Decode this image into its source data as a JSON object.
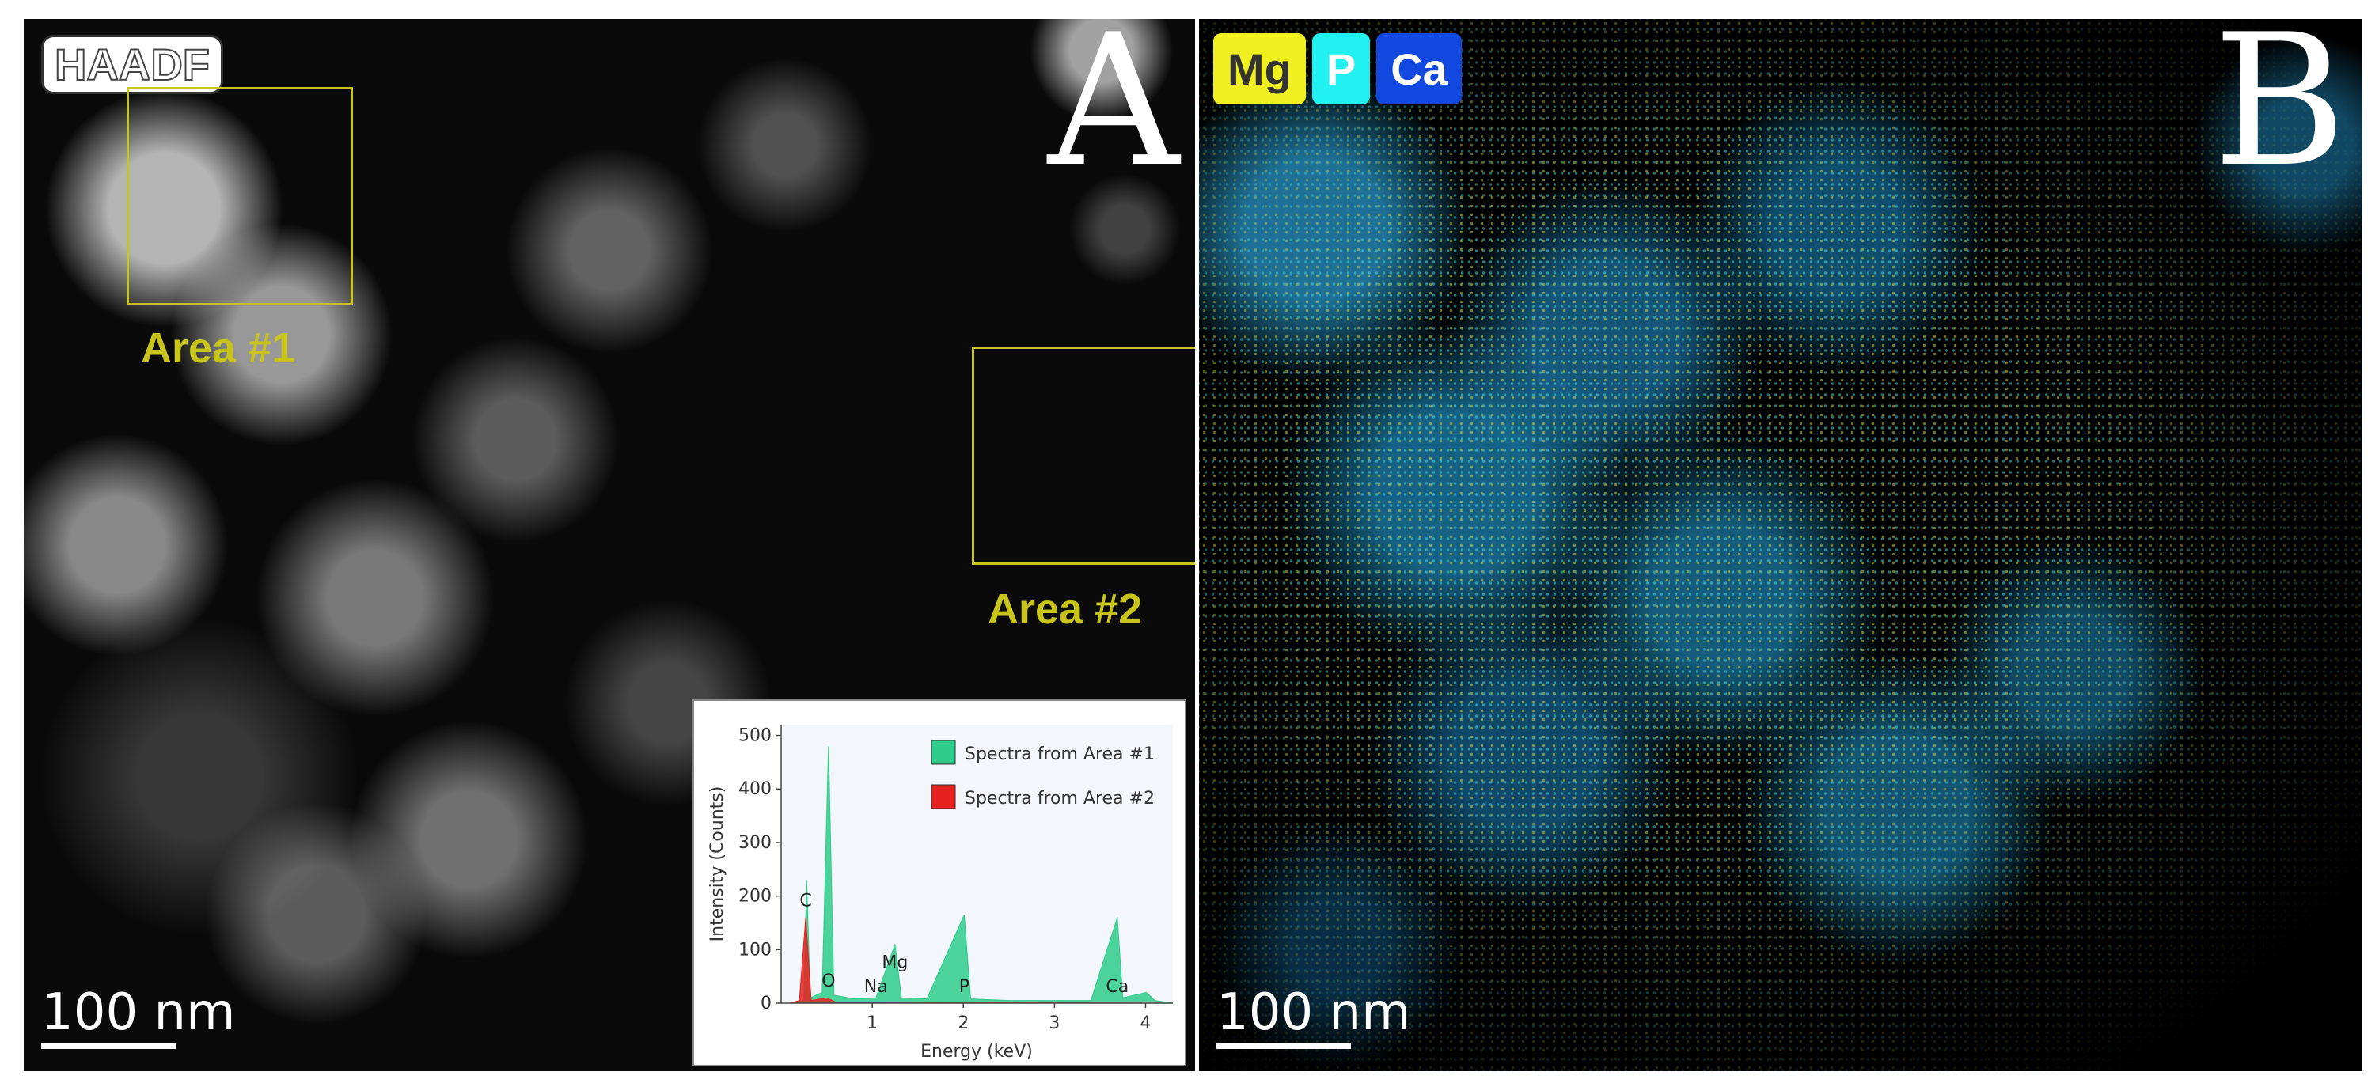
{
  "panelA": {
    "letter": "A",
    "mode_label": "HAADF",
    "area1_label": "Area #1",
    "area2_label": "Area #2",
    "scalebar": "100 nm"
  },
  "panelB": {
    "letter": "B",
    "scalebar": "100 nm",
    "elements": [
      {
        "label": "Mg",
        "color": "#f0f020",
        "text_color": "#333333"
      },
      {
        "label": "P",
        "color": "#20f0f0",
        "text_color": "#ffffff"
      },
      {
        "label": "Ca",
        "color": "#1048e0",
        "text_color": "#ffffff"
      }
    ]
  },
  "chart_data": {
    "type": "area",
    "xlabel": "Energy (keV)",
    "ylabel": "Intensity (Counts)",
    "xlim": [
      0,
      4.3
    ],
    "ylim": [
      0,
      520
    ],
    "xticks": [
      1,
      2,
      3,
      4
    ],
    "yticks": [
      0,
      100,
      200,
      300,
      400,
      500
    ],
    "legend_position": "top-right",
    "series": [
      {
        "name": "Spectra from Area #1",
        "color": "#2ecc8a",
        "points": [
          [
            0.1,
            0
          ],
          [
            0.25,
            5
          ],
          [
            0.28,
            230
          ],
          [
            0.32,
            10
          ],
          [
            0.45,
            20
          ],
          [
            0.52,
            480
          ],
          [
            0.58,
            15
          ],
          [
            0.8,
            8
          ],
          [
            1.04,
            10
          ],
          [
            1.25,
            110
          ],
          [
            1.32,
            10
          ],
          [
            1.6,
            8
          ],
          [
            2.01,
            165
          ],
          [
            2.08,
            8
          ],
          [
            2.5,
            5
          ],
          [
            3.0,
            5
          ],
          [
            3.4,
            5
          ],
          [
            3.69,
            160
          ],
          [
            3.75,
            10
          ],
          [
            4.01,
            20
          ],
          [
            4.1,
            5
          ],
          [
            4.3,
            0
          ]
        ]
      },
      {
        "name": "Spectra from Area #2",
        "color": "#e82020",
        "points": [
          [
            0.1,
            0
          ],
          [
            0.2,
            5
          ],
          [
            0.27,
            160
          ],
          [
            0.33,
            5
          ],
          [
            0.5,
            10
          ],
          [
            0.6,
            2
          ],
          [
            1.0,
            2
          ],
          [
            4.3,
            0
          ]
        ]
      }
    ],
    "annotations": [
      {
        "text": "C",
        "x": 0.27,
        "y": 175
      },
      {
        "text": "O",
        "x": 0.52,
        "y": 25
      },
      {
        "text": "Na",
        "x": 1.04,
        "y": 15
      },
      {
        "text": "Mg",
        "x": 1.25,
        "y": 60
      },
      {
        "text": "P",
        "x": 2.01,
        "y": 15
      },
      {
        "text": "Ca",
        "x": 3.69,
        "y": 15
      }
    ]
  }
}
